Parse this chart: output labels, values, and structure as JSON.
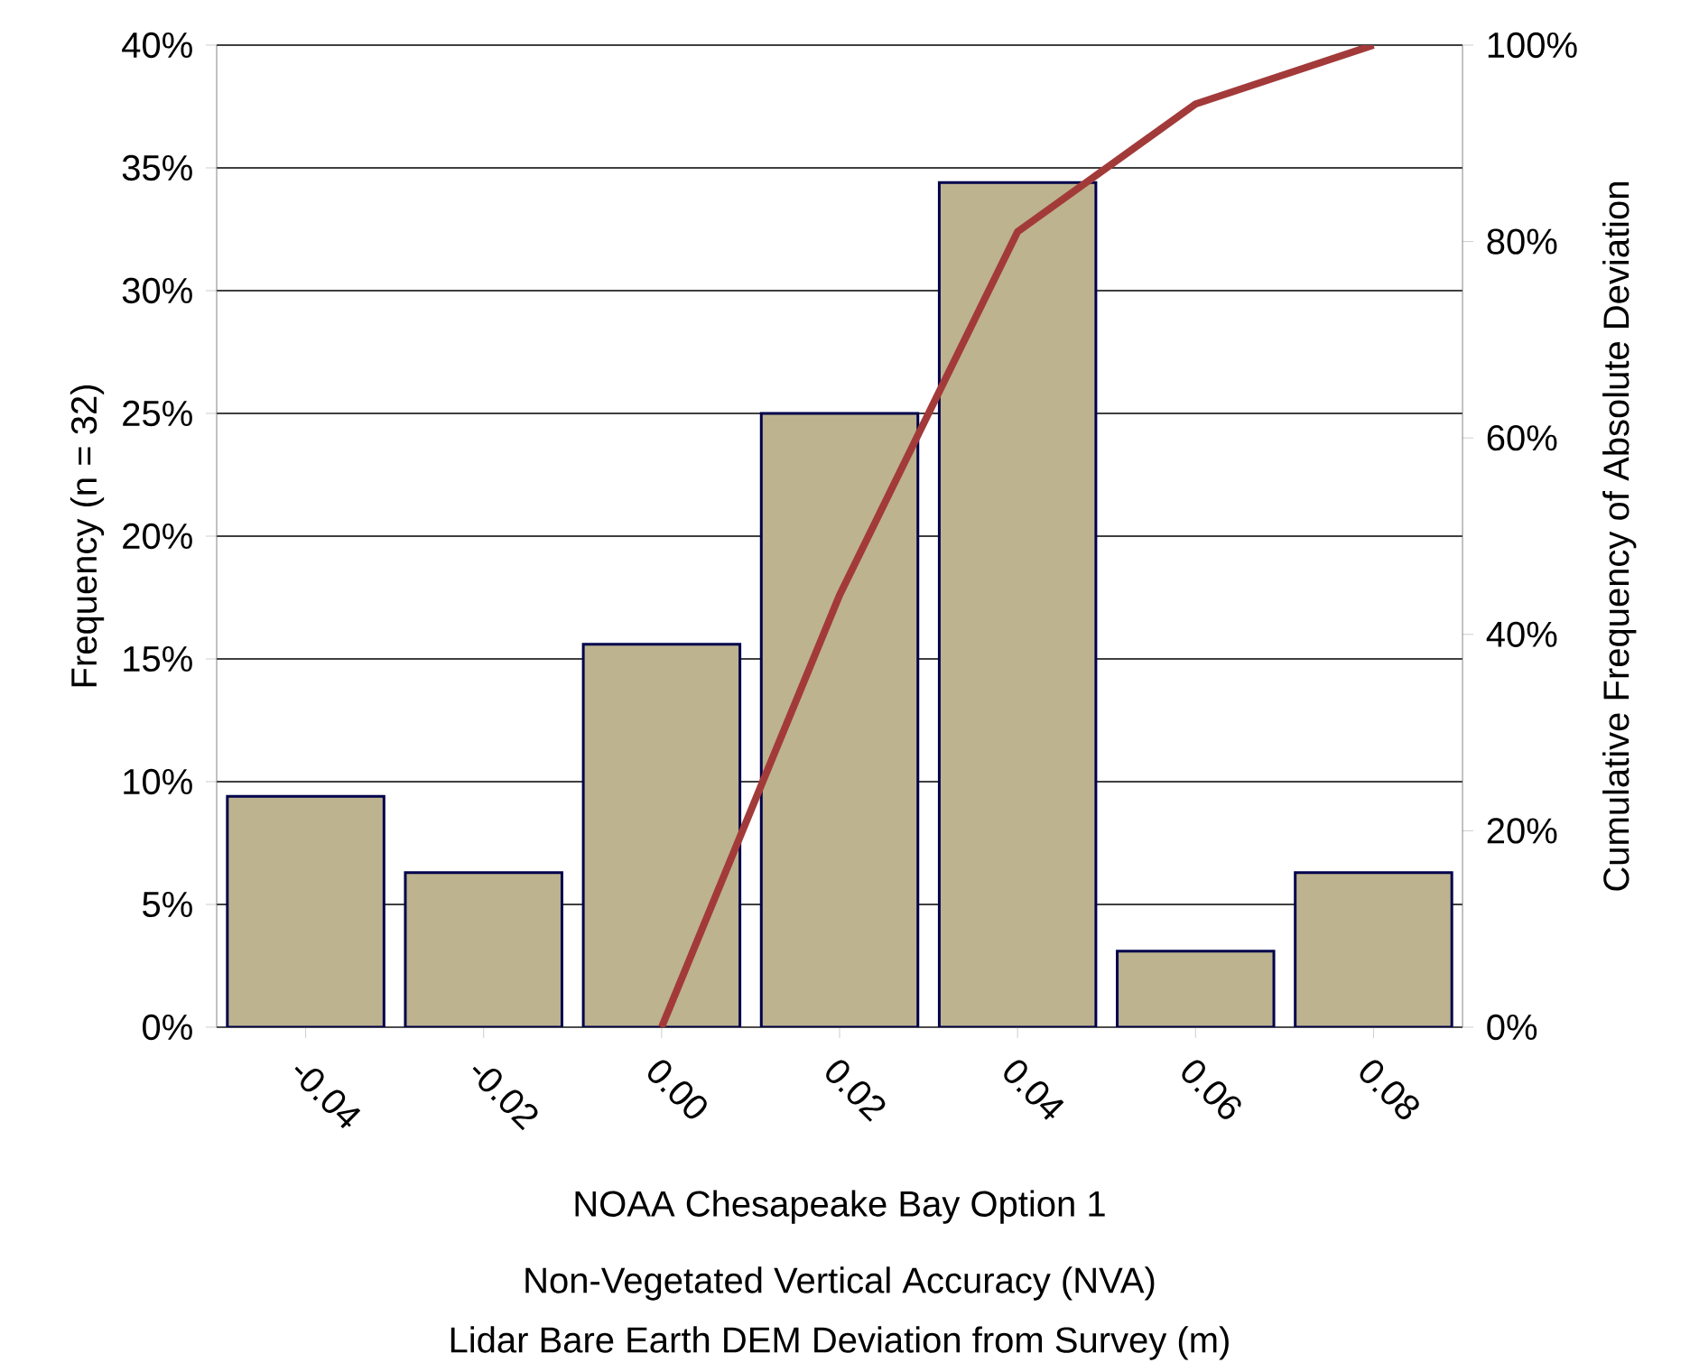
{
  "chart_data": {
    "type": "bar",
    "categories": [
      "-0.04",
      "-0.02",
      "0.00",
      "0.02",
      "0.04",
      "0.06",
      "0.08"
    ],
    "series": [
      {
        "color": "#bdb38e",
        "values": [
          9.4,
          6.3,
          15.6,
          25,
          34.4,
          3.1,
          6.3
        ]
      },
      {
        "type": "line",
        "axis": "y2",
        "color": "#a33a3a",
        "values": [
          null,
          null,
          0,
          44,
          81,
          94,
          100
        ]
      }
    ],
    "ylabel": "Frequency (n = 32)",
    "y2label": "Cumulative Frequency of Absolute Deviation",
    "xlabel": "NOAA Chesapeake Bay Option 1",
    "annotations": [
      "Non-Vegetated Vertical Accuracy (NVA)",
      "Lidar Bare Earth DEM Deviation from Survey (m)"
    ],
    "ylim": [
      0,
      40
    ],
    "yticks": [
      {
        "value": 0,
        "label": "0%"
      },
      {
        "value": 5,
        "label": "5%"
      },
      {
        "value": 10,
        "label": "10%"
      },
      {
        "value": 15,
        "label": "15%"
      },
      {
        "value": 20,
        "label": "20%"
      },
      {
        "value": 25,
        "label": "25%"
      },
      {
        "value": 30,
        "label": "30%"
      },
      {
        "value": 35,
        "label": "35%"
      },
      {
        "value": 40,
        "label": "40%"
      }
    ],
    "y2lim": [
      0,
      100
    ],
    "y2ticks": [
      {
        "value": 0,
        "label": "0%"
      },
      {
        "value": 20,
        "label": "20%"
      },
      {
        "value": 40,
        "label": "40%"
      },
      {
        "value": 60,
        "label": "60%"
      },
      {
        "value": 80,
        "label": "80%"
      },
      {
        "value": 100,
        "label": "100%"
      }
    ],
    "grid": "y"
  }
}
